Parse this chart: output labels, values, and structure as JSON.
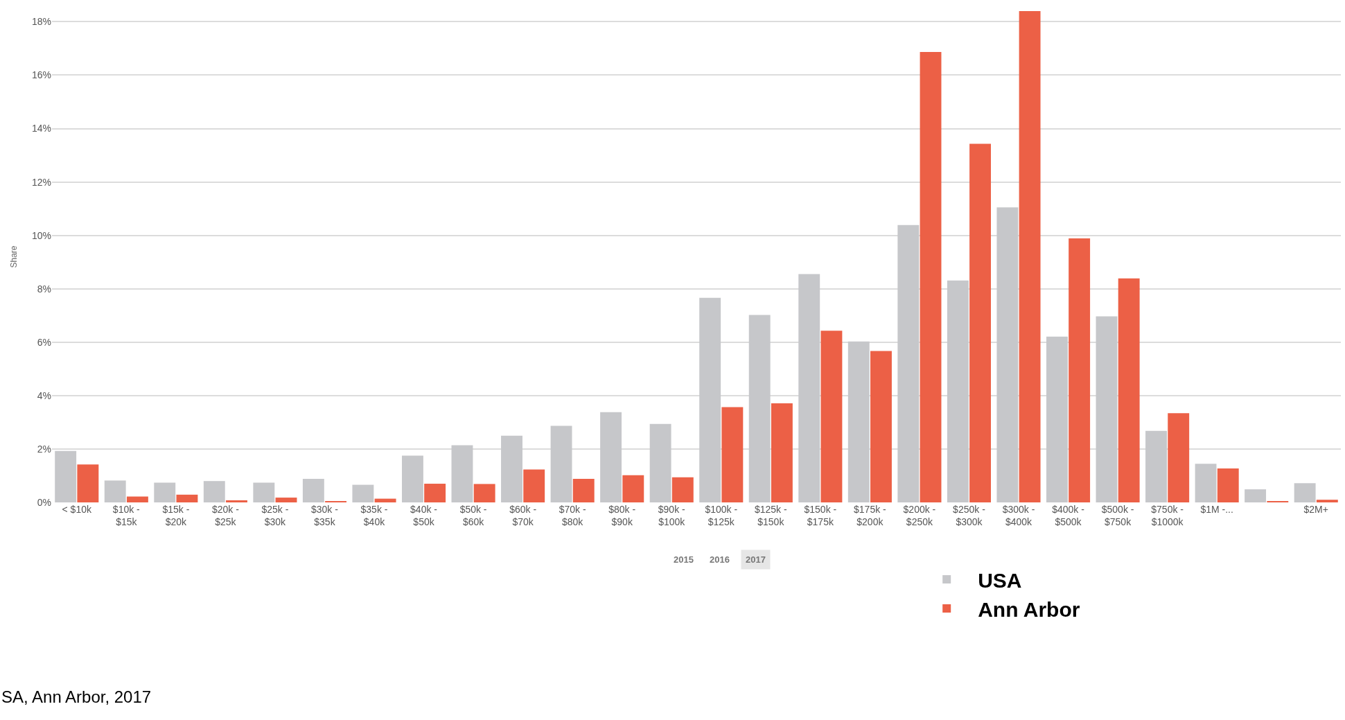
{
  "chart_data": {
    "type": "bar",
    "ylabel": "Share",
    "categories": [
      "< $10k",
      "$10k -\n$15k",
      "$15k -\n$20k",
      "$20k -\n$25k",
      "$25k -\n$30k",
      "$30k -\n$35k",
      "$35k -\n$40k",
      "$40k -\n$50k",
      "$50k -\n$60k",
      "$60k -\n$70k",
      "$70k -\n$80k",
      "$80k -\n$90k",
      "$90k -\n$100k",
      "$100k -\n$125k",
      "$125k -\n$150k",
      "$150k -\n$175k",
      "$175k -\n$200k",
      "$200k -\n$250k",
      "$250k -\n$300k",
      "$300k -\n$400k",
      "$400k -\n$500k",
      "$500k -\n$750k",
      "$750k -\n$1000k",
      "$1M -...",
      null,
      "$2M+"
    ],
    "series": [
      {
        "name": "USA",
        "color": "#c6c7ca",
        "values": [
          1.93,
          0.82,
          0.74,
          0.8,
          0.74,
          0.88,
          0.66,
          1.75,
          2.14,
          2.5,
          2.87,
          3.38,
          2.94,
          7.66,
          7.02,
          8.55,
          6.03,
          10.39,
          8.31,
          11.05,
          6.21,
          6.97,
          2.68,
          1.45,
          0.49,
          0.72
        ]
      },
      {
        "name": "Ann Arbor",
        "color": "#ec6046",
        "values": [
          1.42,
          0.22,
          0.29,
          0.08,
          0.18,
          0.05,
          0.14,
          0.7,
          0.69,
          1.23,
          0.88,
          1.02,
          0.94,
          3.57,
          3.71,
          6.43,
          5.67,
          16.87,
          13.43,
          18.4,
          9.89,
          8.39,
          3.34,
          1.27,
          0.05,
          0.1
        ]
      }
    ],
    "ylim": [
      0,
      18.4
    ],
    "yticks": [
      {
        "value": 0,
        "label": "0%"
      },
      {
        "value": 2,
        "label": "2%"
      },
      {
        "value": 4,
        "label": "4%"
      },
      {
        "value": 6,
        "label": "6%"
      },
      {
        "value": 8,
        "label": "8%"
      },
      {
        "value": 10,
        "label": "10%"
      },
      {
        "value": 12,
        "label": "12%"
      },
      {
        "value": 14,
        "label": "14%"
      },
      {
        "value": 16,
        "label": "16%"
      },
      {
        "value": 18,
        "label": "18%"
      }
    ],
    "grid": "y",
    "legend": "bottom right",
    "annotations": [
      "2015",
      "2016",
      "2017",
      "SA, Ann Arbor, 2017"
    ]
  }
}
